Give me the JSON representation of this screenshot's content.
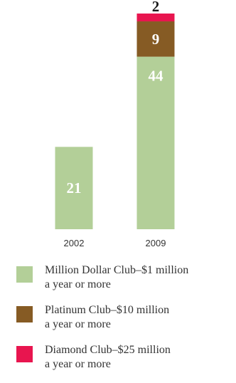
{
  "chart_data": {
    "type": "bar",
    "stacked": true,
    "categories": [
      "2002",
      "2009"
    ],
    "series": [
      {
        "name": "Million Dollar Club–$1 million a year or more",
        "values": [
          21,
          44
        ],
        "color": "#b3cf98",
        "label_color": "#ffffff"
      },
      {
        "name": "Platinum Club–$10 million a year or more",
        "values": [
          0,
          9
        ],
        "color": "#865b24",
        "label_color": "#ffffff"
      },
      {
        "name": "Diamond Club–$25 million a year or more",
        "values": [
          0,
          2
        ],
        "color": "#e8154f",
        "label_color": "#1a1a1a"
      }
    ],
    "ylim": [
      0,
      55
    ],
    "grid": false,
    "legend_position": "bottom"
  },
  "legend": [
    {
      "line1": "Million Dollar Club–$1 million",
      "line2": "a year or more",
      "color": "#b3cf98"
    },
    {
      "line1": "Platinum Club–$10 million",
      "line2": "a year or more",
      "color": "#865b24"
    },
    {
      "line1": "Diamond Club–$25 million",
      "line2": "a year or more",
      "color": "#e8154f"
    }
  ]
}
